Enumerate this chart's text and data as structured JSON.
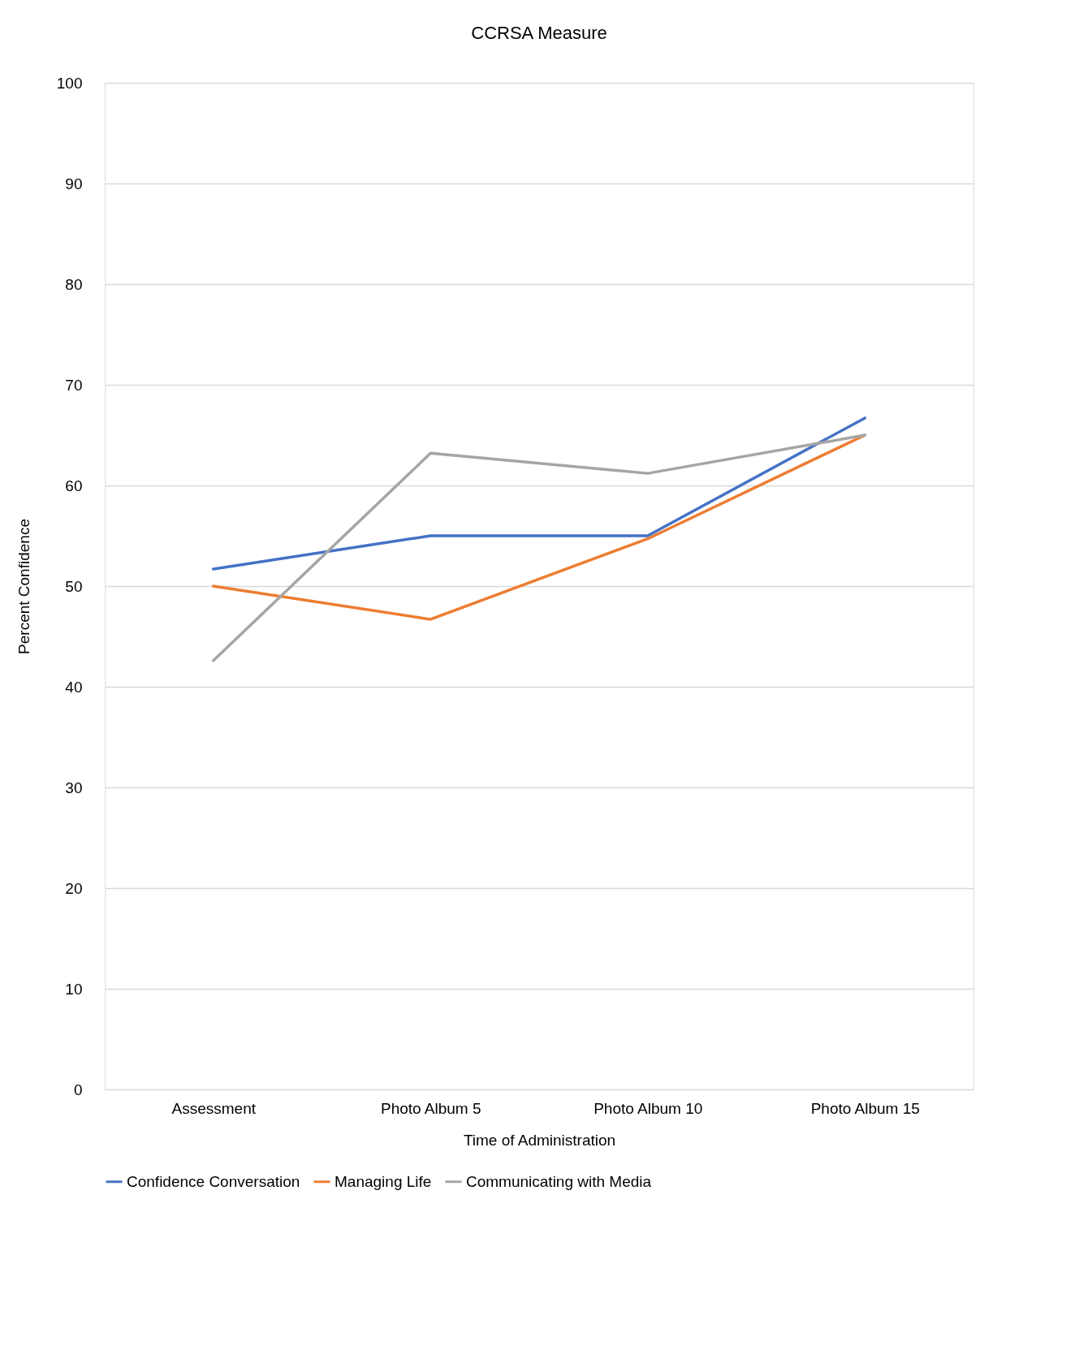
{
  "chart_data": {
    "type": "line",
    "title": "CCRSA Measure",
    "xlabel": "Time of Administration",
    "ylabel": "Percent Confidence",
    "categories": [
      "Assessment",
      "Photo Album 5",
      "Photo Album 10",
      "Photo Album 15"
    ],
    "series": [
      {
        "name": "Confidence Conversation",
        "color": "#4472c4",
        "values": [
          51.7,
          55.0,
          55.0,
          66.7
        ]
      },
      {
        "name": "Managing Life",
        "color": "#ed7d31",
        "values": [
          50.0,
          46.7,
          54.7,
          65.0
        ]
      },
      {
        "name": "Communicating with Media",
        "color": "#a5a5a5",
        "values": [
          42.6,
          63.2,
          61.2,
          65.0
        ]
      }
    ],
    "ylim": [
      0,
      100
    ],
    "yticks": [
      0,
      10,
      20,
      30,
      40,
      50,
      60,
      70,
      80,
      90,
      100
    ],
    "grid": "y",
    "legend": "bottom",
    "marker": "none",
    "line_style": "solid"
  }
}
